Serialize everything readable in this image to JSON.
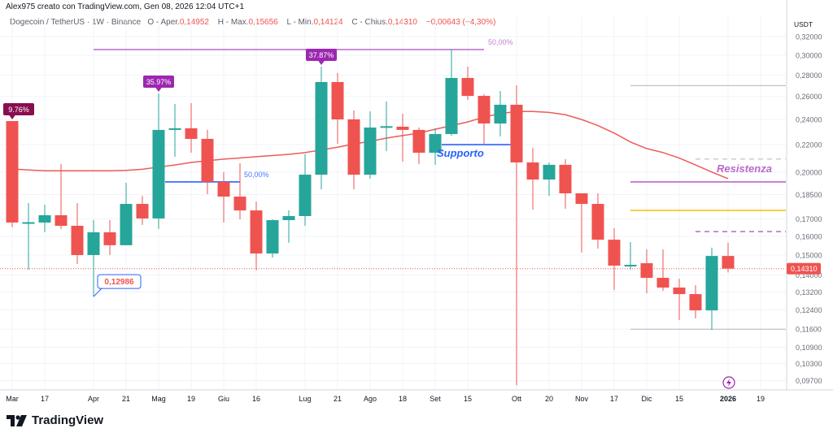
{
  "header": {
    "author_line": "Alex975 creato con TradingView.com, Gen 08, 2026 12:04 UTC+1",
    "symbol": "Dogecoin / TetherUS · 1W · Binance",
    "open_label": "O - Aper.",
    "open": "0,14952",
    "high_label": "H - Max.",
    "high": "0,15656",
    "low_label": "L - Min.",
    "low": "0,14124",
    "close_label": "C - Chius.",
    "close": "0,14310",
    "change": "−0,00643 (−4,30%)"
  },
  "footer": {
    "logo_text": "TradingView"
  },
  "colors": {
    "up": "#26a69a",
    "down": "#ef5350",
    "ma": "#ee5a5a",
    "grid": "#f0f3fa"
  },
  "chart_data": {
    "type": "candlestick",
    "title": "Dogecoin / TetherUS · 1W · Binance",
    "currency": "USDT",
    "yscale": "log",
    "ylim": [
      0.097,
      0.32
    ],
    "grid": true,
    "last_price": 0.1431,
    "last_price_label": "0,14310",
    "yticks": [
      "0,32000",
      "0,30000",
      "0,28000",
      "0,26000",
      "0,24000",
      "0,22000",
      "0,20000",
      "0,18500",
      "0,17000",
      "0,16000",
      "0,15000",
      "0,14000",
      "0,13200",
      "0,12400",
      "0,11600",
      "0,10900",
      "0,10300",
      "0,09700"
    ],
    "ytick_values": [
      0.32,
      0.3,
      0.28,
      0.26,
      0.24,
      0.22,
      0.2,
      0.185,
      0.17,
      0.16,
      0.15,
      0.14,
      0.132,
      0.124,
      0.116,
      0.109,
      0.103,
      0.097
    ],
    "xticks": [
      {
        "label": "Mar",
        "week": 0
      },
      {
        "label": "17",
        "week": 2
      },
      {
        "label": "Apr",
        "week": 5
      },
      {
        "label": "21",
        "week": 7
      },
      {
        "label": "Mag",
        "week": 9
      },
      {
        "label": "19",
        "week": 11
      },
      {
        "label": "Giu",
        "week": 13
      },
      {
        "label": "16",
        "week": 15
      },
      {
        "label": "Lug",
        "week": 18
      },
      {
        "label": "21",
        "week": 20
      },
      {
        "label": "Ago",
        "week": 22
      },
      {
        "label": "18",
        "week": 24
      },
      {
        "label": "Set",
        "week": 26
      },
      {
        "label": "15",
        "week": 28
      },
      {
        "label": "Ott",
        "week": 31
      },
      {
        "label": "20",
        "week": 33
      },
      {
        "label": "Nov",
        "week": 35
      },
      {
        "label": "17",
        "week": 37
      },
      {
        "label": "Dic",
        "week": 39
      },
      {
        "label": "15",
        "week": 41
      },
      {
        "label": "2026",
        "week": 44,
        "bold": true
      },
      {
        "label": "19",
        "week": 46
      }
    ],
    "candles": [
      [
        0.2387,
        0.2387,
        0.1651,
        0.1679
      ],
      [
        0.1679,
        0.1796,
        0.1426,
        0.1681
      ],
      [
        0.1679,
        0.1786,
        0.1623,
        0.1722
      ],
      [
        0.1722,
        0.2056,
        0.1642,
        0.166
      ],
      [
        0.166,
        0.1796,
        0.1454,
        0.15
      ],
      [
        0.15,
        0.1693,
        0.12986,
        0.1623
      ],
      [
        0.1623,
        0.1693,
        0.15,
        0.1552
      ],
      [
        0.1552,
        0.1927,
        0.1552,
        0.1791
      ],
      [
        0.1791,
        0.1842,
        0.1665,
        0.1703
      ],
      [
        0.1703,
        0.2627,
        0.1642,
        0.2315
      ],
      [
        0.2321,
        0.2533,
        0.2109,
        0.2328
      ],
      [
        0.2328,
        0.254,
        0.2139,
        0.2244
      ],
      [
        0.2244,
        0.2315,
        0.1853,
        0.1933
      ],
      [
        0.1933,
        0.1999,
        0.1679,
        0.1837
      ],
      [
        0.1837,
        0.2062,
        0.1698,
        0.1751
      ],
      [
        0.1751,
        0.1806,
        0.1422,
        0.1508
      ],
      [
        0.1508,
        0.1698,
        0.1487,
        0.1693
      ],
      [
        0.1693,
        0.1751,
        0.1565,
        0.1717
      ],
      [
        0.1717,
        0.2127,
        0.166,
        0.1982
      ],
      [
        0.1982,
        0.2883,
        0.1884,
        0.2733
      ],
      [
        0.2733,
        0.2819,
        0.2206,
        0.2401
      ],
      [
        0.2401,
        0.2476,
        0.1884,
        0.1982
      ],
      [
        0.1982,
        0.2469,
        0.1955,
        0.2334
      ],
      [
        0.2341,
        0.2554,
        0.2151,
        0.2345
      ],
      [
        0.2341,
        0.2449,
        0.2074,
        0.2315
      ],
      [
        0.2315,
        0.2334,
        0.2056,
        0.2139
      ],
      [
        0.2139,
        0.2328,
        0.2051,
        0.2282
      ],
      [
        0.2282,
        0.3059,
        0.2269,
        0.2772
      ],
      [
        0.2772,
        0.2883,
        0.2569,
        0.2605
      ],
      [
        0.2605,
        0.262,
        0.2206,
        0.2367
      ],
      [
        0.2367,
        0.265,
        0.2263,
        0.2526
      ],
      [
        0.2526,
        0.2702,
        0.0955,
        0.2068
      ],
      [
        0.2068,
        0.2175,
        0.1756,
        0.1949
      ],
      [
        0.1949,
        0.2068,
        0.1842,
        0.2051
      ],
      [
        0.2051,
        0.2092,
        0.1761,
        0.1858
      ],
      [
        0.1858,
        0.1858,
        0.1513,
        0.1791
      ],
      [
        0.1791,
        0.1858,
        0.1534,
        0.1582
      ],
      [
        0.1582,
        0.1646,
        0.1329,
        0.1446
      ],
      [
        0.1446,
        0.1569,
        0.1426,
        0.145
      ],
      [
        0.1458,
        0.153,
        0.1314,
        0.1386
      ],
      [
        0.1386,
        0.153,
        0.1325,
        0.134
      ],
      [
        0.134,
        0.1382,
        0.1197,
        0.131
      ],
      [
        0.131,
        0.1351,
        0.1204,
        0.1238
      ],
      [
        0.1238,
        0.1539,
        0.1157,
        0.14952
      ],
      [
        0.14952,
        0.15656,
        0.14124,
        0.1431
      ]
    ],
    "candle_format": [
      "open",
      "high",
      "low",
      "close"
    ],
    "moving_average": [
      0.2022,
      0.2015,
      0.2009,
      0.2009,
      0.2009,
      0.2009,
      0.2009,
      0.2012,
      0.202,
      0.2035,
      0.205,
      0.2068,
      0.208,
      0.2092,
      0.21,
      0.211,
      0.2118,
      0.2127,
      0.214,
      0.216,
      0.218,
      0.2205,
      0.2225,
      0.225,
      0.227,
      0.229,
      0.232,
      0.235,
      0.238,
      0.242,
      0.245,
      0.2468,
      0.2468,
      0.246,
      0.244,
      0.24,
      0.235,
      0.229,
      0.222,
      0.217,
      0.214,
      0.21,
      0.205,
      0.2,
      0.1955
    ],
    "annotations": {
      "hlines": [
        {
          "name": "fib-50-top",
          "price": 0.3059,
          "from": 5,
          "to": 29,
          "color": "#ba68c8",
          "label": "50,00%",
          "dashed": false
        },
        {
          "name": "fib-50-may",
          "price": 0.1933,
          "from": 9.4,
          "to": 14,
          "color": "#2962ff",
          "label": "50,00%",
          "dashed": false
        },
        {
          "name": "supporto-line",
          "price": 0.22,
          "from": 26.4,
          "to": 30.7,
          "color": "#2962ff",
          "dashed": false
        },
        {
          "name": "level-grey-top",
          "price": 0.27,
          "from": 38,
          "to": 47.6,
          "color": "#b2b5be",
          "dashed": false
        },
        {
          "name": "level-grey-dashed",
          "price": 0.2092,
          "from": 42,
          "to": 47.6,
          "color": "#b2b5be",
          "dashed": true
        },
        {
          "name": "level-purple",
          "price": 0.1933,
          "from": 38,
          "to": 47.6,
          "color": "#ba68c8",
          "dashed": false
        },
        {
          "name": "level-yellow",
          "price": 0.1751,
          "from": 38,
          "to": 47.6,
          "color": "#f5c518",
          "dashed": false
        },
        {
          "name": "level-purple-dashed",
          "price": 0.1627,
          "from": 42,
          "to": 47.6,
          "color": "#ba68c8",
          "dashed": true
        },
        {
          "name": "level-grey-bottom",
          "price": 0.116,
          "from": 38,
          "to": 47.6,
          "color": "#b2b5be",
          "dashed": false
        }
      ],
      "texts": [
        {
          "name": "supporto-text",
          "text": "Supporto",
          "week": 26,
          "price": 0.211,
          "color": "#2962ff"
        },
        {
          "name": "resistenza-text",
          "text": "Resistenza",
          "week": 43.2,
          "price": 0.2,
          "color": "#ba68c8"
        }
      ],
      "pct_labels": [
        {
          "text": "9.76%",
          "week": 0,
          "price": 0.2387,
          "color": "#880e4f"
        },
        {
          "text": "35.97%",
          "week": 9,
          "price": 0.2627,
          "color": "#9c27b0"
        },
        {
          "text": "37.87%",
          "week": 19,
          "price": 0.2883,
          "color": "#9c27b0"
        }
      ],
      "price_callout": {
        "text": "0,12986",
        "week": 5,
        "price": 0.12986
      }
    }
  }
}
